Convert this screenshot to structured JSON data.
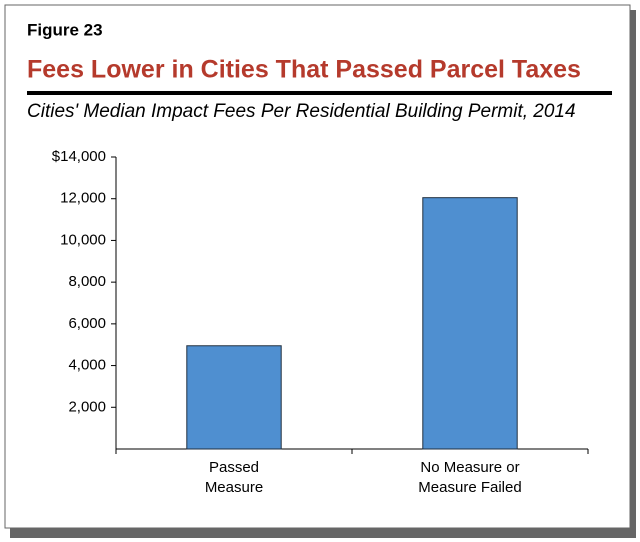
{
  "chart_data": {
    "type": "bar",
    "figure_label": "Figure 23",
    "title": "Fees Lower in Cities That Passed Parcel Taxes",
    "subtitle": "Cities' Median Impact Fees Per Residential Building Permit, 2014",
    "categories": [
      [
        "Passed",
        "Measure"
      ],
      [
        "No Measure or",
        "Measure Failed"
      ]
    ],
    "values": [
      4950,
      12050
    ],
    "color": "#4f8fd0",
    "ylim": [
      0,
      14000
    ],
    "yticks": [
      {
        "value": 2000,
        "label": "2,000"
      },
      {
        "value": 4000,
        "label": "4,000"
      },
      {
        "value": 6000,
        "label": "6,000"
      },
      {
        "value": 8000,
        "label": "8,000"
      },
      {
        "value": 10000,
        "label": "10,000"
      },
      {
        "value": 12000,
        "label": "12,000"
      },
      {
        "value": 14000,
        "label": "$14,000"
      }
    ],
    "grid": false
  }
}
